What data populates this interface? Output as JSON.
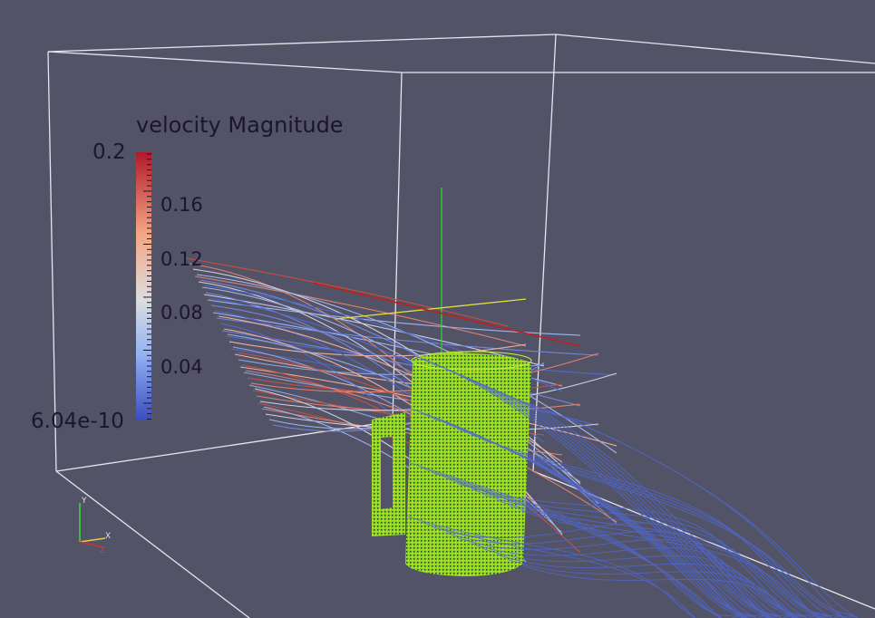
{
  "legend": {
    "title": "velocity Magnitude",
    "max_label": "0.2",
    "min_label": "6.04e-10",
    "ticks": [
      "0.16",
      "0.12",
      "0.08",
      "0.04"
    ],
    "colormap_top": "#b2182b",
    "colormap_mid": "#dddddd",
    "colormap_bottom": "#3b4cc0"
  },
  "scene": {
    "background": "#525366",
    "mesh_color": "#7fe020",
    "streamline_color": "#5068d0"
  },
  "orientation_axes": {
    "x_label": "X",
    "y_label": "Y",
    "z_label": "Z"
  }
}
